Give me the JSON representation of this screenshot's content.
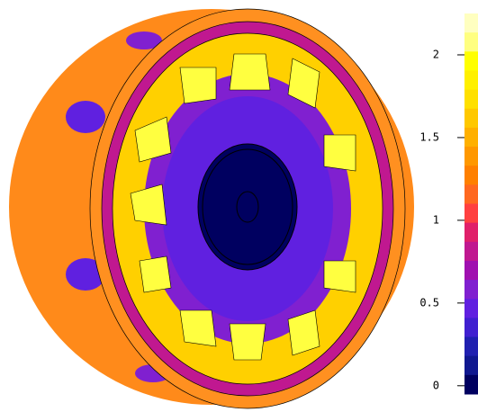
{
  "chart_data": {
    "type": "colorbar",
    "ylim": [
      -0.05,
      2.25
    ],
    "yticks": [
      0,
      0.5,
      1,
      1.5,
      2
    ],
    "colors": [
      "#ffffc0",
      "#ffff80",
      "#ffff00",
      "#fff000",
      "#ffe000",
      "#ffc800",
      "#ffb000",
      "#ff9800",
      "#ff8000",
      "#ff6820",
      "#ff4040",
      "#e0206a",
      "#c01890",
      "#a010b0",
      "#8020d0",
      "#6020e0",
      "#4020d0",
      "#2020b0",
      "#101890",
      "#000060"
    ]
  }
}
